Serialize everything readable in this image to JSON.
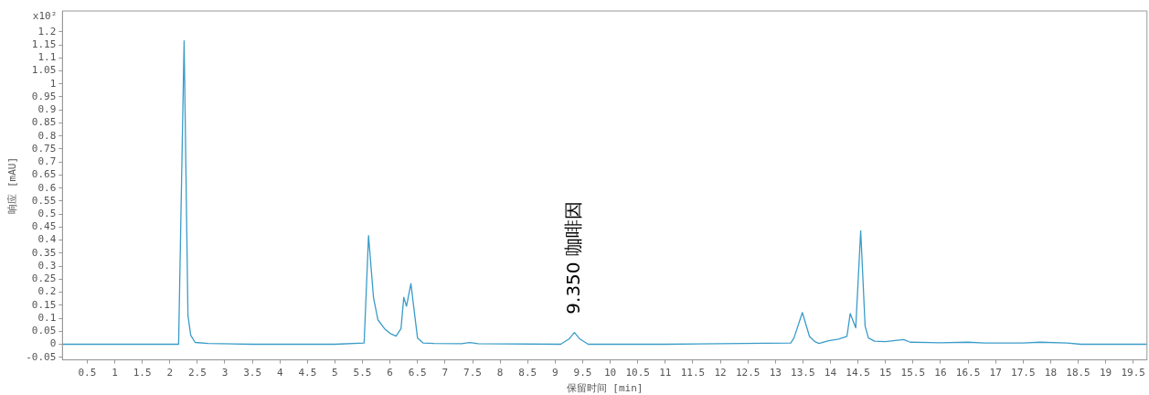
{
  "chart_data": {
    "type": "line",
    "xlabel": "保留时间 [min]",
    "ylabel": "响应 [mAU]",
    "annotations": [
      "x10²",
      {
        "text": "9.350 咖啡因",
        "x": 9.35,
        "y": 0.045
      }
    ],
    "x": [
      0.05,
      1.0,
      2.0,
      2.16,
      2.26,
      2.33,
      2.38,
      2.46,
      2.7,
      3.5,
      5.0,
      5.53,
      5.61,
      5.7,
      5.78,
      5.9,
      6.0,
      6.11,
      6.2,
      6.25,
      6.3,
      6.38,
      6.45,
      6.5,
      6.6,
      6.8,
      7.3,
      7.45,
      7.6,
      9.1,
      9.25,
      9.35,
      9.45,
      9.6,
      11.0,
      13.28,
      13.34,
      13.49,
      13.62,
      13.72,
      13.79,
      13.97,
      14.15,
      14.3,
      14.36,
      14.46,
      14.55,
      14.63,
      14.69,
      14.8,
      15.0,
      15.33,
      15.45,
      16.0,
      16.5,
      16.8,
      17.5,
      17.8,
      18.3,
      18.55,
      19.0,
      19.75
    ],
    "series": [
      {
        "color": "#3a9cc8",
        "values": [
          0,
          0,
          0,
          0,
          1.165,
          0.11,
          0.035,
          0.007,
          0.003,
          0,
          0,
          0.005,
          0.417,
          0.18,
          0.094,
          0.06,
          0.042,
          0.031,
          0.06,
          0.18,
          0.146,
          0.233,
          0.11,
          0.024,
          0.005,
          0.003,
          0.002,
          0.007,
          0.002,
          0,
          0.02,
          0.045,
          0.02,
          0,
          0,
          0.005,
          0.025,
          0.122,
          0.03,
          0.01,
          0.003,
          0.014,
          0.02,
          0.03,
          0.118,
          0.063,
          0.436,
          0.07,
          0.024,
          0.012,
          0.01,
          0.018,
          0.008,
          0.006,
          0.008,
          0.005,
          0.005,
          0.008,
          0.005,
          0,
          0,
          0
        ]
      }
    ],
    "xlim": [
      0.05,
      19.75
    ],
    "xticks": [
      0.5,
      1,
      1.5,
      2,
      2.5,
      3,
      3.5,
      4,
      4.5,
      5,
      5.5,
      6,
      6.5,
      7,
      7.5,
      8,
      8.5,
      9,
      9.5,
      10,
      10.5,
      11,
      11.5,
      12,
      12.5,
      13,
      13.5,
      14,
      14.5,
      15,
      15.5,
      16,
      16.5,
      17,
      17.5,
      18,
      18.5,
      19,
      19.5
    ],
    "ylim": [
      -0.06,
      1.28
    ],
    "yticks": [
      -0.05,
      0,
      0.05,
      0.1,
      0.15,
      0.2,
      0.25,
      0.3,
      0.35,
      0.4,
      0.45,
      0.5,
      0.55,
      0.6,
      0.65,
      0.7,
      0.75,
      0.8,
      0.85,
      0.9,
      0.95,
      1,
      1.05,
      1.1,
      1.15,
      1.2
    ],
    "grid": false,
    "legend": false,
    "marker": "none",
    "line_style": "solid"
  }
}
